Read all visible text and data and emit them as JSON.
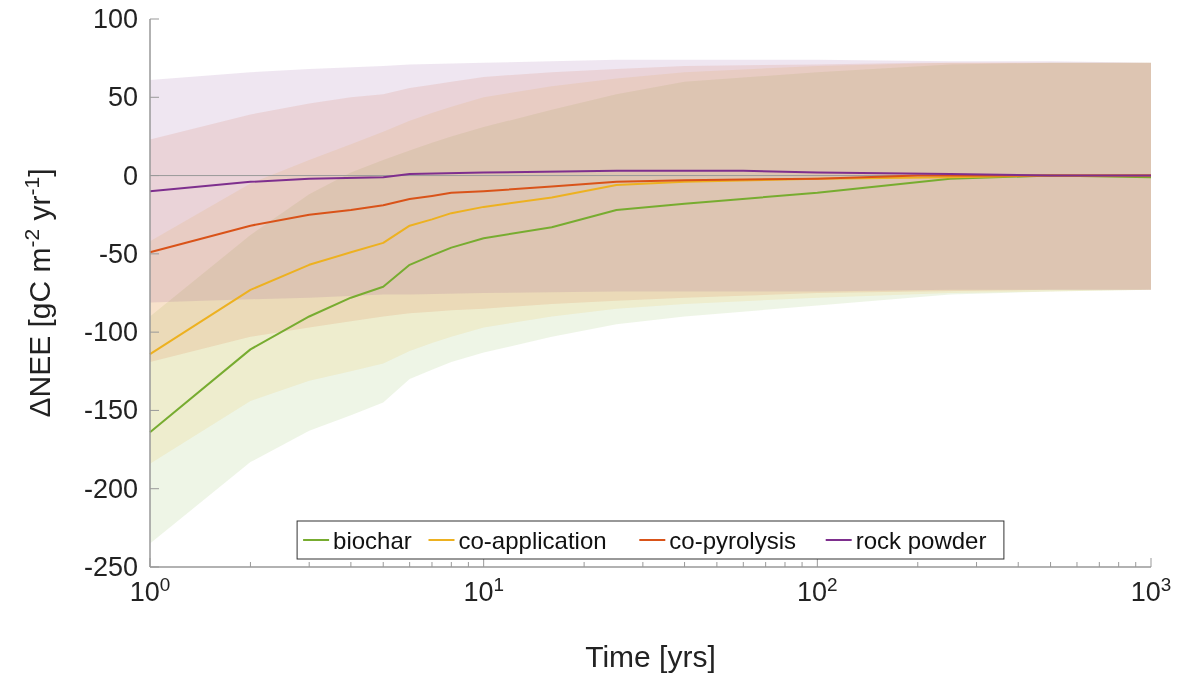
{
  "chart_data": {
    "type": "line",
    "xlabel": "Time [yrs]",
    "ylabel": "ΔNEE [gC m$^{-2}$ yr$^{-1}$]",
    "log": "x",
    "xlim": [
      1,
      1000
    ],
    "ylim": [
      -250,
      100
    ],
    "xticks": [
      {
        "value": 1,
        "label": "10$^{0}$"
      },
      {
        "value": 2,
        "label": null
      },
      {
        "value": 3,
        "label": null
      },
      {
        "value": 4,
        "label": null
      },
      {
        "value": 5,
        "label": null
      },
      {
        "value": 6,
        "label": null
      },
      {
        "value": 7,
        "label": null
      },
      {
        "value": 8,
        "label": null
      },
      {
        "value": 9,
        "label": null
      },
      {
        "value": 10,
        "label": "10$^{1}$"
      },
      {
        "value": 20,
        "label": null
      },
      {
        "value": 30,
        "label": null
      },
      {
        "value": 40,
        "label": null
      },
      {
        "value": 50,
        "label": null
      },
      {
        "value": 60,
        "label": null
      },
      {
        "value": 70,
        "label": null
      },
      {
        "value": 80,
        "label": null
      },
      {
        "value": 90,
        "label": null
      },
      {
        "value": 100,
        "label": "10$^{2}$"
      },
      {
        "value": 200,
        "label": null
      },
      {
        "value": 300,
        "label": null
      },
      {
        "value": 400,
        "label": null
      },
      {
        "value": 500,
        "label": null
      },
      {
        "value": 600,
        "label": null
      },
      {
        "value": 700,
        "label": null
      },
      {
        "value": 800,
        "label": null
      },
      {
        "value": 900,
        "label": null
      },
      {
        "value": 1000,
        "label": "10$^{3}$"
      }
    ],
    "yticks": [
      -250,
      -200,
      -150,
      -100,
      -50,
      0,
      50,
      100
    ],
    "grid": false,
    "legend": "bottom",
    "line_style": "solid",
    "marker": "none",
    "ref_lines": [
      {
        "axis": "y",
        "value": 0,
        "label": null,
        "color": "#999999"
      }
    ],
    "series": [
      {
        "name": "biochar",
        "color": "#77ac30",
        "x": [
          1,
          2,
          3,
          4,
          5,
          6,
          7,
          8,
          10,
          16,
          25,
          40,
          100,
          250,
          500,
          1000
        ],
        "values": [
          -164,
          -111,
          -90,
          -78,
          -71,
          -57,
          -51,
          -46,
          -40,
          -33,
          -22,
          -18,
          -11,
          -2,
          0,
          -1
        ],
        "lower": [
          -235,
          -183,
          -163,
          -153,
          -145,
          -130,
          -124,
          -119,
          -113,
          -103,
          -95,
          -90,
          -83,
          -76,
          -74,
          -73
        ],
        "upper": [
          -90,
          -38,
          -12,
          2,
          10,
          16,
          21,
          25,
          31,
          42,
          52,
          60,
          66,
          71,
          72,
          72
        ]
      },
      {
        "name": "co-application",
        "color": "#edb120",
        "x": [
          1,
          2,
          3,
          4,
          5,
          6,
          7,
          8,
          10,
          16,
          25,
          40,
          100,
          250,
          500,
          1000
        ],
        "values": [
          -114,
          -73,
          -57,
          -49,
          -43,
          -32,
          -28,
          -24,
          -20,
          -14,
          -6,
          -4,
          -2,
          -1,
          0,
          0
        ],
        "lower": [
          -184,
          -144,
          -131,
          -125,
          -120,
          -112,
          -107,
          -103,
          -97,
          -90,
          -85,
          -82,
          -78,
          -75,
          -74,
          -73
        ],
        "upper": [
          -42,
          -5,
          10,
          20,
          28,
          35,
          40,
          44,
          50,
          57,
          62,
          66,
          70,
          72,
          72,
          72
        ]
      },
      {
        "name": "co-pyrolysis",
        "color": "#d95319",
        "x": [
          1,
          2,
          3,
          4,
          5,
          6,
          7,
          8,
          10,
          16,
          25,
          40,
          100,
          200,
          500,
          1000
        ],
        "values": [
          -49,
          -32,
          -25,
          -22,
          -19,
          -15,
          -13,
          -11,
          -10,
          -7,
          -4,
          -3,
          -2,
          0,
          0,
          0
        ],
        "lower": [
          -119,
          -103,
          -97,
          -93,
          -90,
          -88,
          -87,
          -86,
          -85,
          -82,
          -80,
          -78,
          -75,
          -74,
          -73,
          -73
        ],
        "upper": [
          23,
          39,
          46,
          50,
          52,
          56,
          58,
          60,
          63,
          66,
          68,
          70,
          71,
          72,
          72,
          72
        ]
      },
      {
        "name": "rock powder",
        "color": "#7e2f8e",
        "x": [
          1,
          2,
          3,
          5,
          6,
          10,
          25,
          60,
          100,
          250,
          500,
          1000
        ],
        "values": [
          -10,
          -4,
          -2,
          -1,
          1,
          2,
          3,
          3,
          2,
          1,
          0,
          0
        ],
        "lower": [
          -81,
          -79,
          -78,
          -76,
          -76,
          -75,
          -74,
          -74,
          -74,
          -73,
          -73,
          -73
        ],
        "upper": [
          61,
          66,
          68,
          70,
          71,
          72,
          74,
          74,
          74,
          73,
          73,
          72
        ]
      }
    ]
  }
}
